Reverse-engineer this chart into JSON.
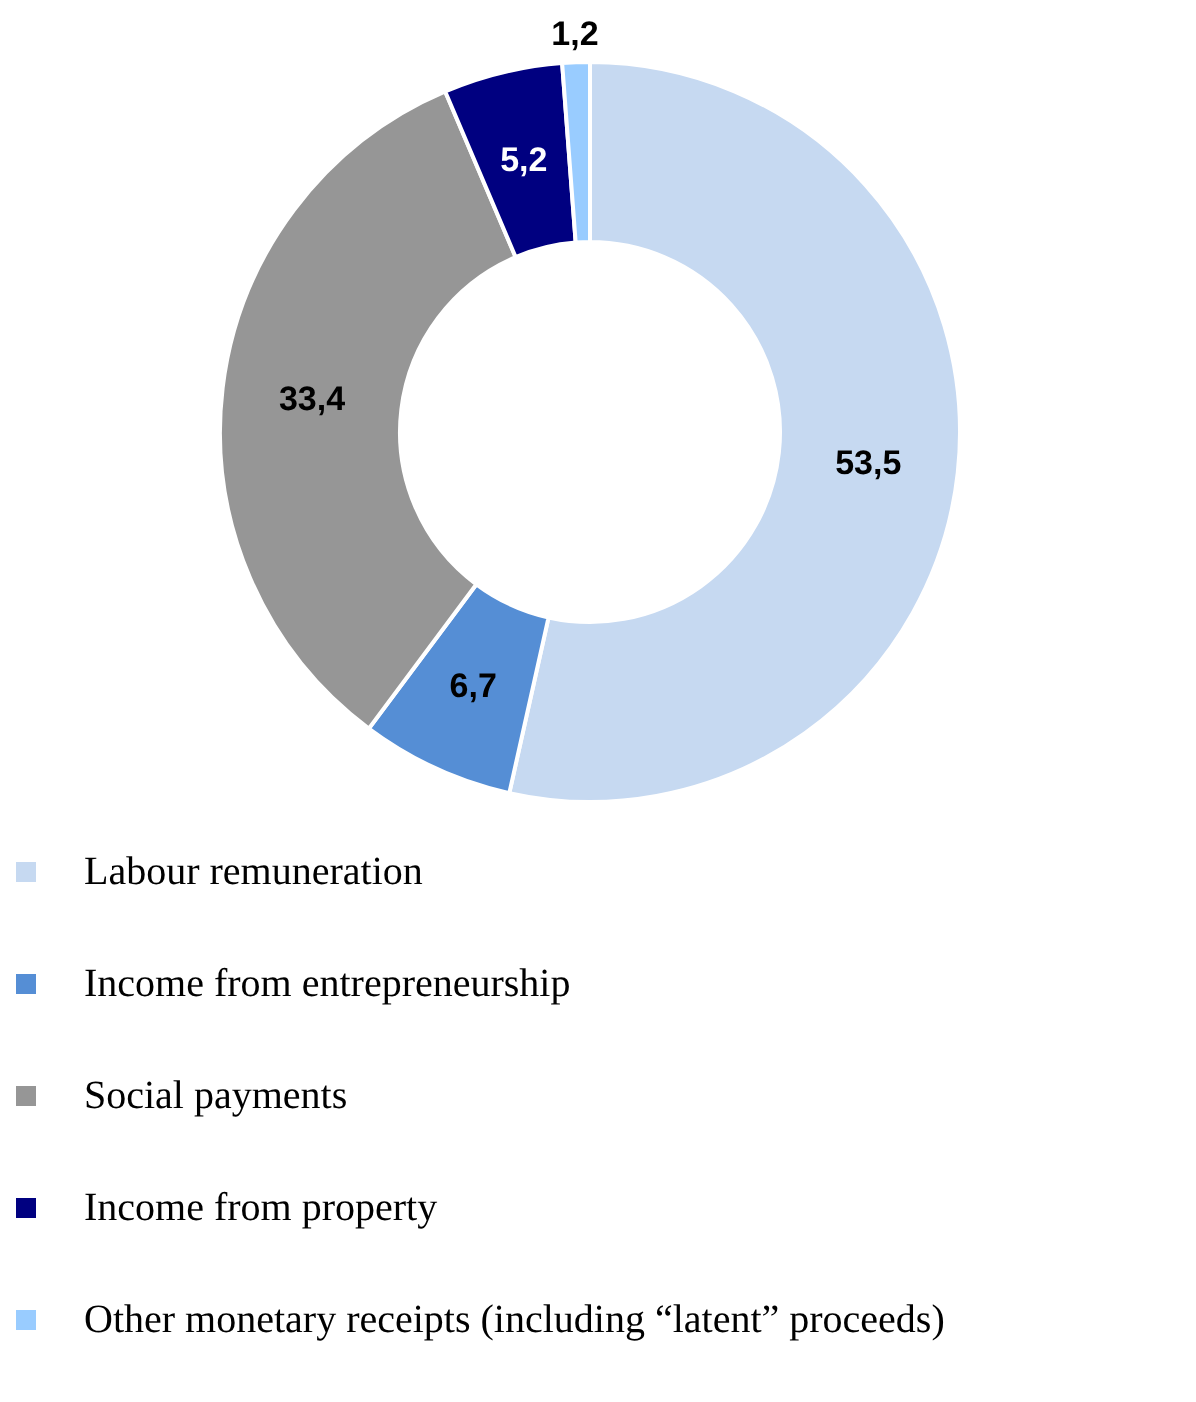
{
  "chart_data": {
    "type": "donut",
    "categories": [
      "Labour remuneration",
      "Income from entrepreneurship",
      "Social payments",
      "Income from property",
      "Other monetary receipts (including “latent” proceeds)"
    ],
    "values": [
      53.5,
      6.7,
      33.4,
      5.2,
      1.2
    ],
    "colors": [
      "#c6d9f1",
      "#558ed5",
      "#969696",
      "#000080",
      "#99ccff"
    ],
    "value_labels": [
      "53,5",
      "6,7",
      "33,4",
      "5,2",
      "1,2"
    ],
    "legend": "bottom"
  }
}
